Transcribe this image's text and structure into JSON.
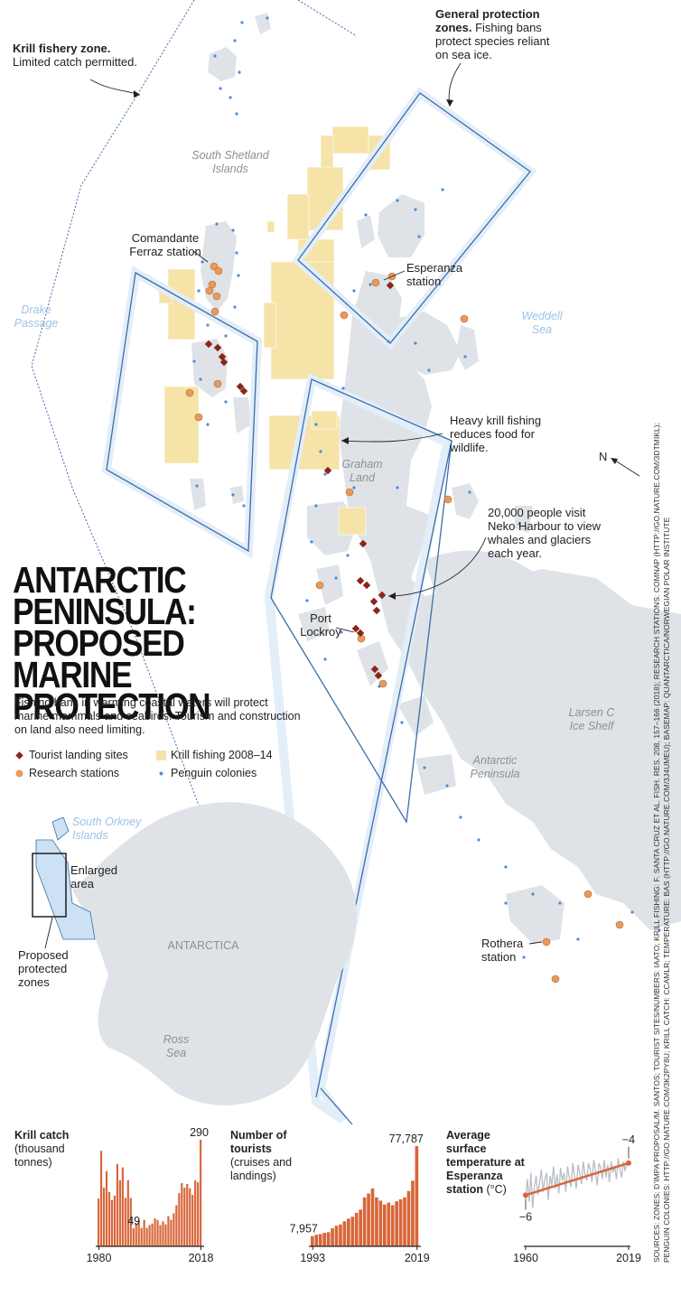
{
  "title": "ANTARCTIC PENINSULA: PROPOSED MARINE PROTECTION",
  "title_lines": [
    "ANTARCTIC",
    "PENINSULA:",
    "PROPOSED MARINE",
    "PROTECTION"
  ],
  "subtitle": "Fishing bans in warming coastal waters will protect marine mammals and seabirds. Tourism and construction on land also need limiting.",
  "legend": {
    "tourist": "Tourist landing sites",
    "krill": "Krill fishing 2008–14",
    "research": "Research stations",
    "penguin": "Penguin colonies"
  },
  "colors": {
    "tourist": "#8b2518",
    "research": "#e89a5c",
    "krill": "#f5e3a8",
    "penguin": "#4a8fd6",
    "land": "#dfe3e8",
    "zone_line": "#3b6ea8",
    "zone_fill": "#e8f2fb",
    "bar": "#d8663a"
  },
  "annotations": {
    "krill_zone_title": "Krill fishery zone.",
    "krill_zone_text": "Limited catch permitted.",
    "general_title": "General protection zones.",
    "general_text": "Fishing bans protect species reliant on sea ice.",
    "heavy_krill": "Heavy krill fishing reduces food for wildlife.",
    "neko": "20,000 people visit Neko Harbour to view whales and glaciers each year.",
    "north": "N"
  },
  "places": {
    "south_shetland": "South Shetland Islands",
    "drake": "Drake Passage",
    "weddell": "Weddell Sea",
    "graham": "Graham Land",
    "larsen": "Larsen C Ice Shelf",
    "antarctic_peninsula": "Antarctic Peninsula",
    "south_orkney": "South Orkney Islands",
    "antarctica": "ANTARCTICA",
    "ross": "Ross Sea"
  },
  "stations": {
    "comandante": "Comandante Ferraz station",
    "esperanza": "Esperanza station",
    "port_lockroy": "Port Lockroy",
    "rothera": "Rothera station"
  },
  "inset": {
    "enlarged": "Enlarged area",
    "proposed": "Proposed protected zones"
  },
  "chart_data": [
    {
      "type": "bar",
      "title_bold": "Krill catch",
      "title_rest": "(thousand tonnes)",
      "x": [
        1980,
        1981,
        1982,
        1983,
        1984,
        1985,
        1986,
        1987,
        1988,
        1989,
        1990,
        1991,
        1992,
        1993,
        1994,
        1995,
        1996,
        1997,
        1998,
        1999,
        2000,
        2001,
        2002,
        2003,
        2004,
        2005,
        2006,
        2007,
        2008,
        2009,
        2010,
        2011,
        2012,
        2013,
        2014,
        2015,
        2016,
        2017,
        2018
      ],
      "values": [
        130,
        260,
        160,
        205,
        148,
        126,
        138,
        224,
        180,
        215,
        132,
        180,
        132,
        49,
        60,
        70,
        50,
        72,
        50,
        58,
        62,
        76,
        72,
        58,
        68,
        60,
        82,
        72,
        90,
        112,
        145,
        172,
        160,
        170,
        158,
        140,
        180,
        175,
        290
      ],
      "x_tick_labels": [
        "1980",
        "2018"
      ],
      "annotations": [
        {
          "x": 1993,
          "label": "49"
        },
        {
          "x": 2018,
          "label": "290"
        }
      ]
    },
    {
      "type": "bar",
      "title_bold": "Number of tourists",
      "title_rest": "(cruises and landings)",
      "x": [
        1993,
        1994,
        1995,
        1996,
        1997,
        1998,
        1999,
        2000,
        2001,
        2002,
        2003,
        2004,
        2005,
        2006,
        2007,
        2008,
        2009,
        2010,
        2011,
        2012,
        2013,
        2014,
        2015,
        2016,
        2017,
        2018,
        2019
      ],
      "values": [
        7957,
        9000,
        9500,
        10500,
        11000,
        14000,
        16000,
        17000,
        19500,
        21500,
        23000,
        26000,
        28500,
        38000,
        41000,
        45000,
        38000,
        35500,
        32500,
        34000,
        32000,
        35000,
        36500,
        38000,
        43000,
        51000,
        77787
      ],
      "x_tick_labels": [
        "1993",
        "2019"
      ],
      "annotations": [
        {
          "x": 1993,
          "label": "7,957"
        },
        {
          "x": 2019,
          "label": "77,787"
        }
      ]
    },
    {
      "type": "line",
      "title_bold": "Average surface temperature at Esperanza station",
      "title_unit": "(°C)",
      "x_range": [
        1960,
        2019
      ],
      "trend": {
        "x": [
          1960,
          2019
        ],
        "y": [
          -6,
          -4
        ]
      },
      "x_tick_labels": [
        "1960",
        "2019"
      ],
      "annotations": [
        {
          "x": 1960,
          "label": "−6"
        },
        {
          "x": 2019,
          "label": "−4"
        }
      ],
      "series": [
        {
          "x": [
            1960,
            1961,
            1962,
            1963,
            1964,
            1965,
            1966,
            1967,
            1968,
            1969,
            1970,
            1971,
            1972,
            1973,
            1974,
            1975,
            1976,
            1977,
            1978,
            1979,
            1980,
            1981,
            1982,
            1983,
            1984,
            1985,
            1986,
            1987,
            1988,
            1989,
            1990,
            1991,
            1992,
            1993,
            1994,
            1995,
            1996,
            1997,
            1998,
            1999,
            2000,
            2001,
            2002,
            2003,
            2004,
            2005,
            2006,
            2007,
            2008,
            2009,
            2010,
            2011,
            2012,
            2013,
            2014,
            2015,
            2016,
            2017,
            2018,
            2019
          ],
          "y": [
            -6.2,
            -5.0,
            -6.4,
            -4.6,
            -6.8,
            -5.5,
            -4.8,
            -6.0,
            -5.2,
            -4.4,
            -5.8,
            -5.0,
            -4.6,
            -6.3,
            -4.8,
            -5.4,
            -4.2,
            -5.6,
            -4.7,
            -5.9,
            -4.3,
            -5.1,
            -4.6,
            -5.8,
            -4.2,
            -4.9,
            -5.5,
            -4.0,
            -4.8,
            -5.6,
            -4.1,
            -4.6,
            -5.3,
            -3.9,
            -4.7,
            -5.1,
            -4.0,
            -4.4,
            -5.2,
            -3.8,
            -4.5,
            -5.4,
            -4.0,
            -4.3,
            -5.0,
            -3.8,
            -4.9,
            -4.1,
            -5.2,
            -3.9,
            -4.6,
            -4.2,
            -5.0,
            -3.7,
            -4.4,
            -4.9,
            -3.9,
            -4.5,
            -4.0,
            -4.1
          ]
        }
      ]
    }
  ],
  "source_line1": "SOURCES: ZONES: D’IMPA PROPOSAL/M. SANTOS; TOURIST SITES/NUMBERS: IAATO; KRILL FISHING: F. SANTA CRUZ ET AL. FISH. RES. 208, 157–166 (2018); RESEARCH STATIONS: COMNAP (HTTP://GO.NATURE.COM/3DTMIKL);",
  "source_line2": "PENGUIN COLONIES: HTTP://GO.NATURE.COM/3K2PY8U; KRILL CATCH: CCAMLR; TEMPERATURE: BAS (HTTP://GO.NATURE.COM/3J4UMEU); BASEMAP: QUANTARCTICA/NORWEGIAN POLAR INSTITUTE"
}
